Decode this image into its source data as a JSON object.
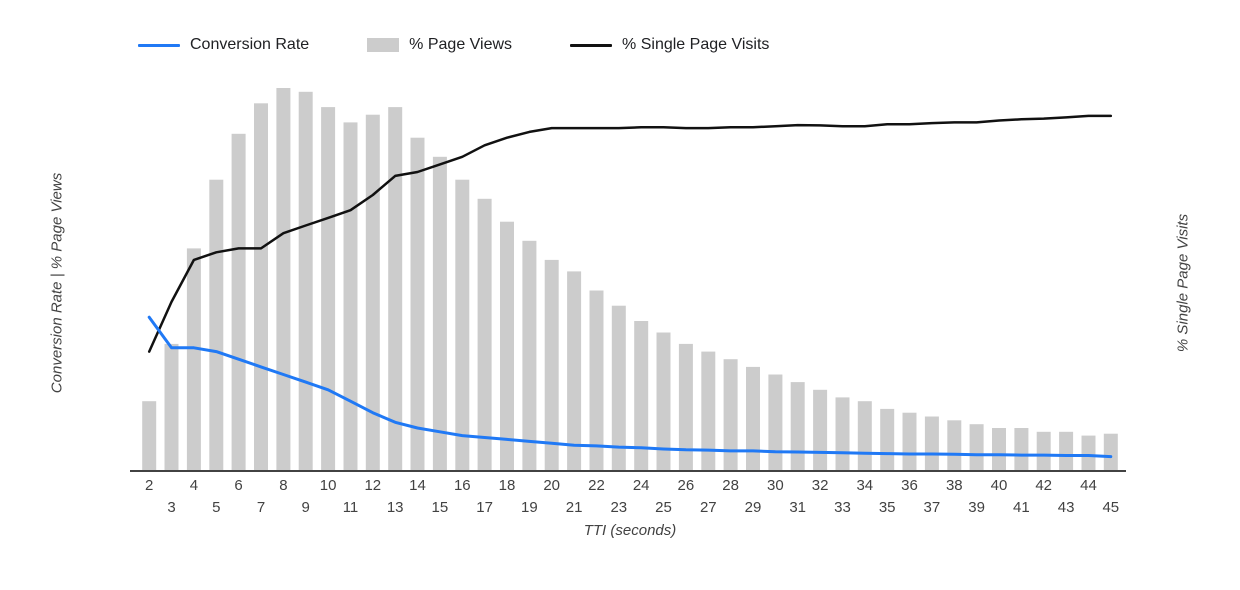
{
  "legend": {
    "items": [
      {
        "label": "Conversion Rate",
        "type": "line",
        "color": "#2079f5"
      },
      {
        "label": "% Page Views",
        "type": "bar",
        "color": "#cccccc"
      },
      {
        "label": "% Single Page Visits",
        "type": "line",
        "color": "#111111"
      }
    ]
  },
  "axes": {
    "left_title": "Conversion Rate | % Page Views",
    "right_title": "% Single Page Visits",
    "x_title": "TTI (seconds)"
  },
  "chart_data": {
    "type": "combo",
    "x": [
      2,
      3,
      4,
      5,
      6,
      7,
      8,
      9,
      10,
      11,
      12,
      13,
      14,
      15,
      16,
      17,
      18,
      19,
      20,
      21,
      22,
      23,
      24,
      25,
      26,
      27,
      28,
      29,
      30,
      31,
      32,
      33,
      34,
      35,
      36,
      37,
      38,
      39,
      40,
      41,
      42,
      43,
      44,
      45
    ],
    "xlabel": "TTI (seconds)",
    "left_axis_label": "Conversion Rate | % Page Views",
    "right_axis_label": "% Single Page Visits",
    "ylim": [
      0,
      100
    ],
    "grid": false,
    "legend_position": "top",
    "note": "No numeric y-axis ticks shown; values estimated as percent of plot height",
    "series": [
      {
        "name": "% Page Views",
        "type": "bar",
        "axis": "left",
        "color": "#cccccc",
        "values": [
          18,
          33,
          58,
          76,
          88,
          96,
          100,
          99,
          95,
          91,
          93,
          95,
          87,
          82,
          76,
          71,
          65,
          60,
          55,
          52,
          47,
          43,
          39,
          36,
          33,
          31,
          29,
          27,
          25,
          23,
          21,
          19,
          18,
          16,
          15,
          14,
          13,
          12,
          11,
          11,
          10,
          10,
          9,
          9.5
        ]
      },
      {
        "name": "% Single Page Visits",
        "type": "line",
        "axis": "right",
        "color": "#111111",
        "values": [
          31,
          44,
          55,
          57,
          58,
          58,
          62,
          64,
          66,
          68,
          72,
          77,
          78,
          80,
          82,
          85,
          87,
          88.5,
          89.5,
          89.5,
          89.5,
          89.5,
          89.7,
          89.7,
          89.5,
          89.5,
          89.7,
          89.7,
          90,
          90.3,
          90.2,
          90,
          90,
          90.5,
          90.5,
          90.8,
          91,
          91,
          91.5,
          91.8,
          92,
          92.3,
          92.7,
          92.7
        ]
      },
      {
        "name": "Conversion Rate",
        "type": "line",
        "axis": "left",
        "color": "#2079f5",
        "values": [
          40,
          32,
          32,
          31,
          29,
          27,
          25,
          23,
          21,
          18,
          15,
          12.5,
          11,
          10,
          9,
          8.5,
          8,
          7.5,
          7,
          6.5,
          6.3,
          6,
          5.8,
          5.5,
          5.3,
          5.2,
          5,
          5,
          4.8,
          4.7,
          4.6,
          4.5,
          4.4,
          4.3,
          4.2,
          4.2,
          4.1,
          4,
          4,
          3.9,
          3.9,
          3.8,
          3.8,
          3.5
        ]
      }
    ],
    "axis_color": "#424242",
    "tick_label_color": "#424242"
  }
}
